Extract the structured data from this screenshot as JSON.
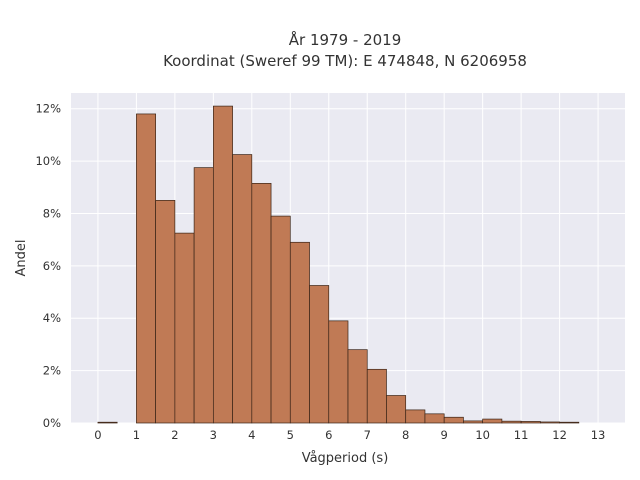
{
  "chart_data": {
    "type": "bar",
    "title_lines": [
      "År 1979 - 2019",
      "Koordinat (Sweref 99 TM): E 474848, N 6206958"
    ],
    "xlabel": "Vågperiod (s)",
    "ylabel": "Andel",
    "bin_width": 0.5,
    "bin_starts": [
      0,
      1,
      1.5,
      2,
      2.5,
      3,
      3.5,
      4,
      4.5,
      5,
      5.5,
      6,
      6.5,
      7,
      7.5,
      8,
      8.5,
      9,
      9.5,
      10,
      10.5,
      11,
      11.5,
      12
    ],
    "values": [
      0.0,
      11.8,
      8.5,
      7.25,
      9.75,
      12.1,
      10.25,
      9.15,
      7.9,
      6.9,
      5.25,
      3.9,
      2.8,
      2.05,
      1.05,
      0.5,
      0.35,
      0.22,
      0.08,
      0.15,
      0.07,
      0.06,
      0.04,
      0.03
    ],
    "x_ticks": [
      "0",
      "1",
      "2",
      "3",
      "4",
      "5",
      "6",
      "7",
      "8",
      "9",
      "10",
      "11",
      "12",
      "13"
    ],
    "y_ticks": [
      "0%",
      "2%",
      "4%",
      "6%",
      "8%",
      "10%",
      "12%"
    ],
    "xlim": [
      -0.7,
      13.7
    ],
    "ylim": [
      0,
      12.6
    ],
    "grid": true,
    "colors": {
      "bar_fill": "#c07a55",
      "bar_stroke": "#3a2417",
      "plot_background": "#eaeaf2",
      "grid": "#ffffff"
    }
  }
}
